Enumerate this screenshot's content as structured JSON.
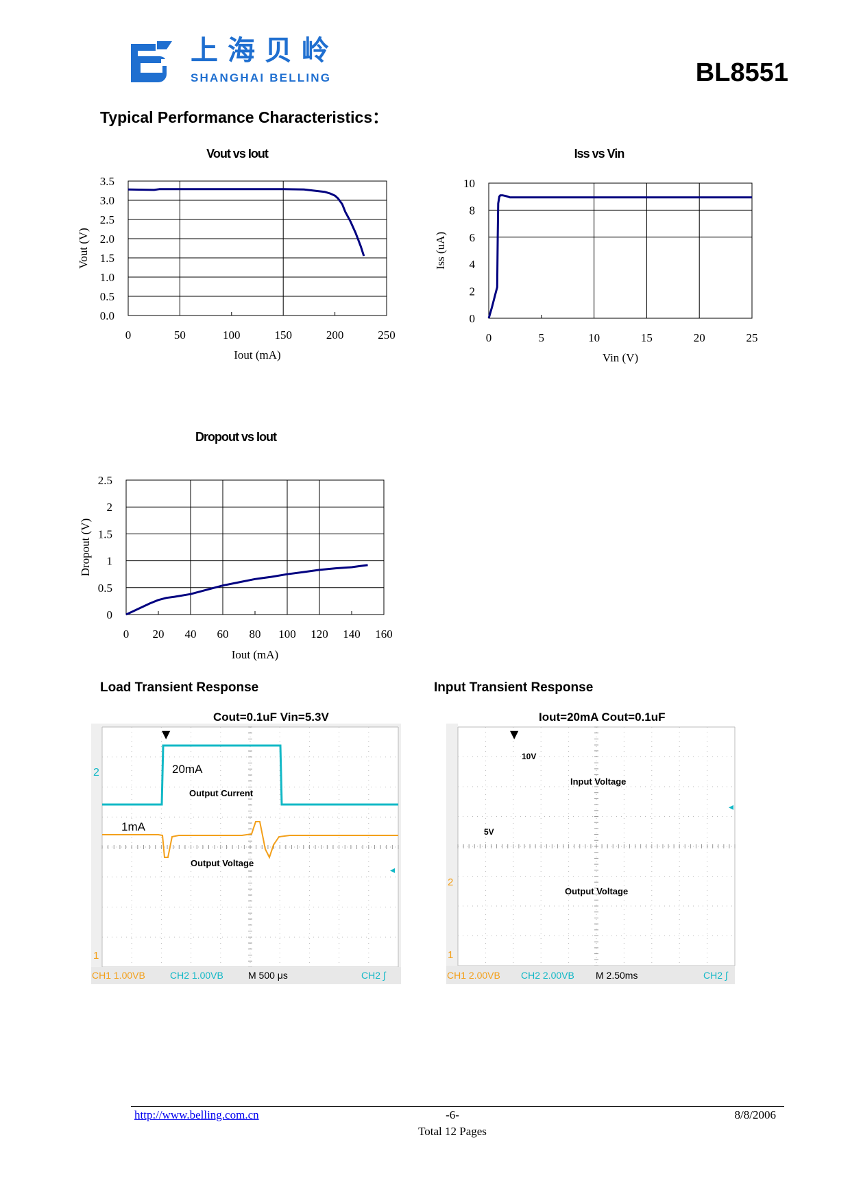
{
  "header": {
    "logo_cn": "上海贝岭",
    "logo_en": "SHANGHAI BELLING",
    "model": "BL8551",
    "brand_color": "#1f6fd0"
  },
  "section_title": "Typical Performance Characteristics：",
  "chart_data": [
    {
      "type": "line",
      "title": "Vout vs Iout",
      "xlabel": "Iout (mA)",
      "ylabel": "Vout (V)",
      "xlim": [
        0,
        250
      ],
      "ylim": [
        0,
        3.5
      ],
      "x_ticks": [
        "0",
        "50",
        "100",
        "150",
        "200",
        "250"
      ],
      "y_ticks": [
        "0.0",
        "0.5",
        "1.0",
        "1.5",
        "2.0",
        "2.5",
        "3.0",
        "3.5"
      ],
      "x_grid": [
        50,
        150
      ],
      "y_grid": [
        0.5,
        1.0,
        1.5,
        2.0,
        2.5,
        3.0
      ],
      "x_minor": [
        100,
        200
      ],
      "series": [
        {
          "color": "#000080",
          "x": [
            0,
            25,
            30,
            50,
            100,
            150,
            170,
            180,
            190,
            195,
            200,
            203,
            207,
            210,
            215,
            220,
            225,
            228
          ],
          "y": [
            3.28,
            3.27,
            3.29,
            3.29,
            3.29,
            3.29,
            3.28,
            3.25,
            3.22,
            3.18,
            3.12,
            3.05,
            2.9,
            2.7,
            2.45,
            2.15,
            1.8,
            1.55
          ]
        }
      ]
    },
    {
      "type": "line",
      "title": "Iss vs Vin",
      "xlabel": "Vin (V)",
      "ylabel": "Iss (uA)",
      "xlim": [
        0,
        25
      ],
      "ylim": [
        0,
        10
      ],
      "x_ticks": [
        "0",
        "5",
        "10",
        "15",
        "20",
        "25"
      ],
      "y_ticks": [
        "0",
        "2",
        "4",
        "6",
        "8",
        "10"
      ],
      "x_grid": [
        10,
        15,
        20
      ],
      "y_grid": [
        6,
        8
      ],
      "x_minor": [
        5
      ],
      "series": [
        {
          "color": "#000080",
          "x": [
            0,
            0.3,
            0.6,
            0.8,
            0.85,
            0.9,
            1.0,
            1.1,
            1.3,
            1.6,
            2,
            5,
            10,
            15,
            20,
            25
          ],
          "y": [
            0,
            0.8,
            1.7,
            2.3,
            6.0,
            8.5,
            9.0,
            9.1,
            9.1,
            9.05,
            8.95,
            8.95,
            8.95,
            8.95,
            8.95,
            8.95
          ]
        }
      ]
    },
    {
      "type": "line",
      "title": "Dropout vs Iout",
      "xlabel": "Iout (mA)",
      "ylabel": "Dropout (V)",
      "xlim": [
        0,
        160
      ],
      "ylim": [
        0,
        2.5
      ],
      "x_ticks": [
        "0",
        "20",
        "40",
        "60",
        "80",
        "100",
        "120",
        "140",
        "160"
      ],
      "y_ticks": [
        "0",
        "0.5",
        "1",
        "1.5",
        "2",
        "2.5"
      ],
      "x_grid": [
        40,
        60,
        100,
        120
      ],
      "y_grid": [
        0.5,
        1,
        1.5,
        2
      ],
      "x_minor": [
        20,
        80,
        140
      ],
      "series": [
        {
          "color": "#000080",
          "x": [
            0,
            5,
            10,
            15,
            20,
            25,
            30,
            40,
            50,
            60,
            70,
            80,
            90,
            100,
            110,
            120,
            130,
            140,
            145,
            150
          ],
          "y": [
            0,
            0.07,
            0.14,
            0.21,
            0.27,
            0.31,
            0.33,
            0.38,
            0.46,
            0.54,
            0.6,
            0.66,
            0.7,
            0.75,
            0.79,
            0.83,
            0.86,
            0.88,
            0.9,
            0.92
          ]
        }
      ]
    }
  ],
  "scopes": {
    "load": {
      "heading": "Load Transient Response",
      "title": "Cout=0.1uF    Vin=5.3V",
      "labels": {
        "i_high": "20mA",
        "i_label": "Output Current",
        "i_low": "1mA",
        "v_label": "Output Voltage"
      },
      "markers": {
        "ch2": "2",
        "ch1": "1"
      },
      "readout": {
        "ch1": "CH1  1.00VB",
        "ch2": "CH2  1.00VB",
        "time": "M 500 μs",
        "trig": "CH2 ∫"
      },
      "trace_colors": {
        "ch_current": "#12b8c6",
        "ch_voltage": "#f3a01b"
      }
    },
    "input": {
      "heading": "Input Transient Response",
      "title": "Iout=20mA  Cout=0.1uF",
      "labels": {
        "v_high": "10V",
        "v_in": "Input Voltage",
        "v_low": "5V",
        "v_out": "Output Voltage"
      },
      "markers": {
        "ch2": "2",
        "ch1": "1"
      },
      "readout": {
        "ch1": "CH1  2.00VB",
        "ch2": "CH2  2.00VB",
        "time": "M 2.50ms",
        "trig": "CH2 ∫"
      },
      "trace_colors": {
        "ch_input": "#12b8c6",
        "ch_output": "#f3a01b"
      }
    }
  },
  "footer": {
    "url": "http://www.belling.com.cn",
    "page": "-6-",
    "date": "8/8/2006",
    "total": "Total 12  Pages"
  }
}
